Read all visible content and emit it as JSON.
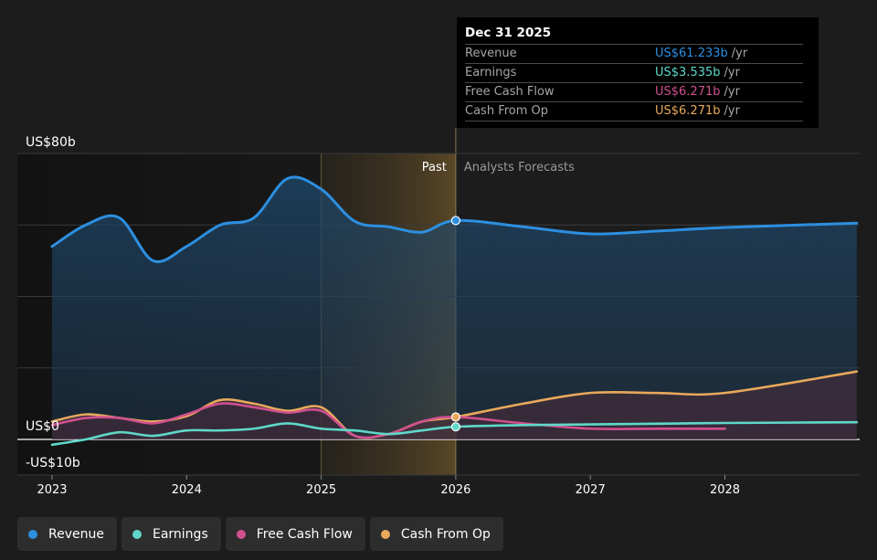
{
  "chart_data": {
    "type": "line",
    "y_axis": {
      "labels": [
        "US$80b",
        "US$0",
        "-US$10b"
      ],
      "ylim": [
        -10,
        80
      ],
      "gridlines": [
        0,
        20,
        40,
        60,
        80
      ]
    },
    "x_axis": {
      "ticks": [
        "2023",
        "2024",
        "2025",
        "2026",
        "2027",
        "2028"
      ],
      "xlim": [
        2022.75,
        2028.98
      ]
    },
    "sections": {
      "past": "Past",
      "forecast": "Analysts Forecasts",
      "past_end": 2026,
      "highlight_start": 2025
    },
    "series": [
      {
        "name": "Revenue",
        "color": "#2d8fe0",
        "fill": "#1a3d5c",
        "points": [
          [
            2023.0,
            54
          ],
          [
            2023.25,
            60
          ],
          [
            2023.5,
            62
          ],
          [
            2023.75,
            50
          ],
          [
            2024.0,
            54
          ],
          [
            2024.25,
            60
          ],
          [
            2024.5,
            62
          ],
          [
            2024.75,
            73
          ],
          [
            2025.0,
            70
          ],
          [
            2025.25,
            61
          ],
          [
            2025.5,
            59.5
          ],
          [
            2025.75,
            58
          ],
          [
            2026.0,
            61.233
          ],
          [
            2026.5,
            59.5
          ],
          [
            2027.0,
            57.5
          ],
          [
            2027.5,
            58.3
          ],
          [
            2028.0,
            59.3
          ],
          [
            2028.98,
            60.5
          ]
        ]
      },
      {
        "name": "Earnings",
        "color": "#5fd8c9",
        "points": [
          [
            2023.0,
            -1.5
          ],
          [
            2023.25,
            0
          ],
          [
            2023.5,
            2
          ],
          [
            2023.75,
            1
          ],
          [
            2024.0,
            2.5
          ],
          [
            2024.25,
            2.5
          ],
          [
            2024.5,
            3
          ],
          [
            2024.75,
            4.5
          ],
          [
            2025.0,
            3
          ],
          [
            2025.25,
            2.5
          ],
          [
            2025.5,
            1.5
          ],
          [
            2025.75,
            2.5
          ],
          [
            2026.0,
            3.535
          ],
          [
            2026.5,
            4
          ],
          [
            2027.0,
            4.2
          ],
          [
            2027.5,
            4.4
          ],
          [
            2028.0,
            4.6
          ],
          [
            2028.98,
            4.8
          ]
        ]
      },
      {
        "name": "Free Cash Flow",
        "color": "#d0508f",
        "points": [
          [
            2023.0,
            4
          ],
          [
            2023.25,
            6
          ],
          [
            2023.5,
            6
          ],
          [
            2023.75,
            4.5
          ],
          [
            2024.0,
            7
          ],
          [
            2024.25,
            10
          ],
          [
            2024.5,
            9
          ],
          [
            2024.75,
            7.5
          ],
          [
            2025.0,
            8
          ],
          [
            2025.25,
            1
          ],
          [
            2025.5,
            1.5
          ],
          [
            2025.75,
            5
          ],
          [
            2026.0,
            6.271
          ],
          [
            2026.5,
            4.5
          ],
          [
            2027.0,
            3
          ],
          [
            2027.5,
            3
          ],
          [
            2028.0,
            3
          ]
        ]
      },
      {
        "name": "Cash From Op",
        "color": "#e8a95b",
        "points": [
          [
            2023.0,
            5
          ],
          [
            2023.25,
            7
          ],
          [
            2023.5,
            6
          ],
          [
            2023.75,
            5
          ],
          [
            2024.0,
            6.5
          ],
          [
            2024.25,
            11
          ],
          [
            2024.5,
            10
          ],
          [
            2024.75,
            8
          ],
          [
            2025.0,
            9
          ],
          [
            2025.25,
            1
          ],
          [
            2025.5,
            1.5
          ],
          [
            2025.75,
            5
          ],
          [
            2026.0,
            6.271
          ],
          [
            2026.5,
            10
          ],
          [
            2027.0,
            13
          ],
          [
            2027.5,
            13
          ],
          [
            2028.0,
            13
          ],
          [
            2028.98,
            19
          ]
        ]
      }
    ]
  },
  "tooltip": {
    "date": "Dec 31 2025",
    "rows": [
      {
        "label": "Revenue",
        "value": "US$61.233b",
        "unit": "/yr",
        "color": "#2d8fe0"
      },
      {
        "label": "Earnings",
        "value": "US$3.535b",
        "unit": "/yr",
        "color": "#5fd8c9"
      },
      {
        "label": "Free Cash Flow",
        "value": "US$6.271b",
        "unit": "/yr",
        "color": "#d0508f"
      },
      {
        "label": "Cash From Op",
        "value": "US$6.271b",
        "unit": "/yr",
        "color": "#e8a95b"
      }
    ]
  },
  "legend": [
    {
      "label": "Revenue",
      "color": "#2d8fe0"
    },
    {
      "label": "Earnings",
      "color": "#5fd8c9"
    },
    {
      "label": "Free Cash Flow",
      "color": "#d0508f"
    },
    {
      "label": "Cash From Op",
      "color": "#e8a95b"
    }
  ]
}
